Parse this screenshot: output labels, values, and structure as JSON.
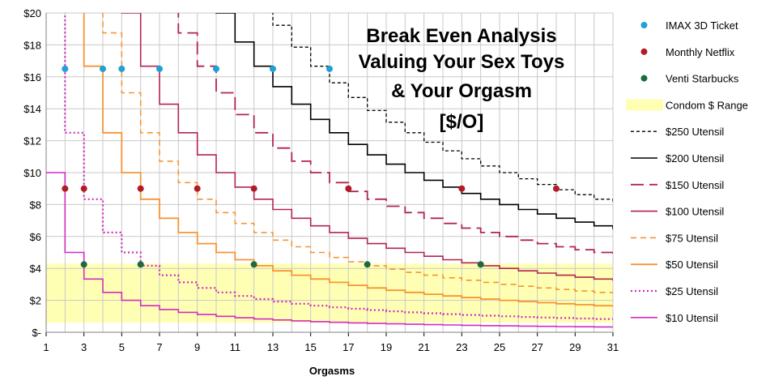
{
  "chart_data": {
    "type": "line",
    "title_lines": [
      "Break Even Analysis",
      "Valuing Your Sex Toys",
      "& Your Orgasm",
      "[$/O]"
    ],
    "xlabel": "Orgasms",
    "ylabel": "",
    "xlim": [
      1,
      31
    ],
    "ylim": [
      0,
      20
    ],
    "x_ticks": [
      1,
      3,
      5,
      7,
      9,
      11,
      13,
      15,
      17,
      19,
      21,
      23,
      25,
      27,
      29,
      31
    ],
    "y_ticks": [
      0,
      2,
      4,
      6,
      8,
      10,
      12,
      14,
      16,
      18,
      20
    ],
    "y_tick_labels": [
      "$-",
      "$2",
      "$4",
      "$6",
      "$8",
      "$10",
      "$12",
      "$14",
      "$16",
      "$18",
      "$20"
    ],
    "grid": true,
    "legend_position": "right",
    "condom_range": {
      "name": "Condom $ Range",
      "min": 0.6,
      "max": 4.3,
      "color": "#ffffb4"
    },
    "series": [
      {
        "name": "$250 Utensil",
        "cost": 250,
        "color": "#000000",
        "dash": "short-dash",
        "width": 1.3
      },
      {
        "name": "$200 Utensil",
        "cost": 200,
        "color": "#000000",
        "dash": "solid",
        "width": 1.6
      },
      {
        "name": "$150 Utensil",
        "cost": 150,
        "color": "#b22452",
        "dash": "long-dash",
        "width": 1.8
      },
      {
        "name": "$100 Utensil",
        "cost": 100,
        "color": "#b22452",
        "dash": "solid",
        "width": 1.6
      },
      {
        "name": "$75 Utensil",
        "cost": 75,
        "color": "#f79433",
        "dash": "medium-dash",
        "width": 1.6
      },
      {
        "name": "$50 Utensil",
        "cost": 50,
        "color": "#f79433",
        "dash": "solid",
        "width": 1.8
      },
      {
        "name": "$25 Utensil",
        "cost": 25,
        "color": "#d22cbf",
        "dash": "dotted",
        "width": 2.2
      },
      {
        "name": "$10 Utensil",
        "cost": 10,
        "color": "#d22cbf",
        "dash": "solid",
        "width": 1.6
      }
    ],
    "markers": [
      {
        "name": "IMAX 3D Ticket",
        "price": 16.5,
        "color": "#1da1d8",
        "x": [
          2,
          4,
          5,
          7,
          10,
          13,
          16
        ]
      },
      {
        "name": "Monthly Netflix",
        "price": 9.0,
        "color": "#b01c24",
        "x": [
          2,
          3,
          6,
          9,
          12,
          17,
          23,
          28
        ]
      },
      {
        "name": "Venti Starbucks",
        "price": 4.25,
        "color": "#1d6b3d",
        "x": [
          3,
          6,
          12,
          18,
          24
        ]
      }
    ]
  }
}
